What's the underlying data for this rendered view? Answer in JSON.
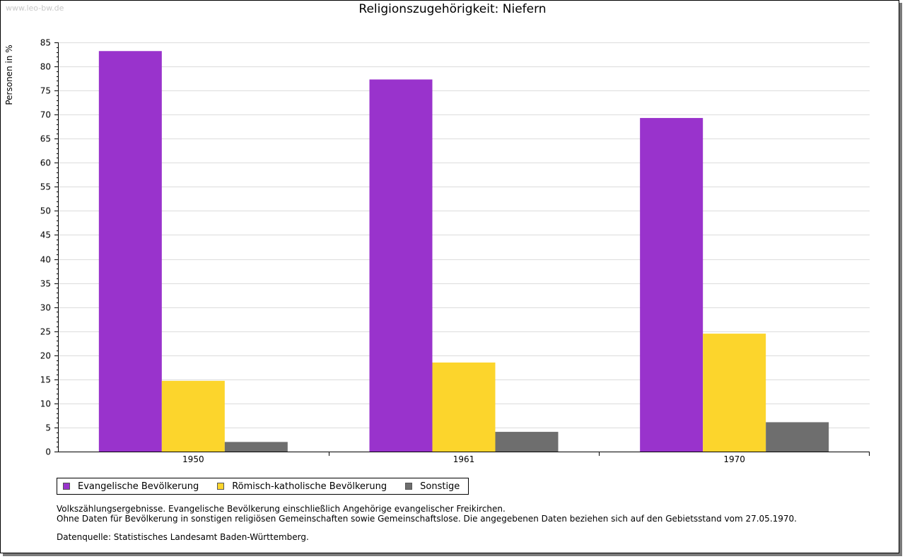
{
  "watermark": "www.leo-bw.de",
  "chart_data": {
    "type": "bar",
    "title": "Religionszugehörigkeit: Niefern",
    "xlabel": "",
    "ylabel": "Personen in %",
    "ylim": [
      0,
      85
    ],
    "ytick_step": 5,
    "grid": true,
    "categories": [
      "1950",
      "1961",
      "1970"
    ],
    "series": [
      {
        "name": "Evangelische Bevölkerung",
        "color": "#9933cc",
        "values": [
          83.2,
          77.3,
          69.3
        ]
      },
      {
        "name": "Römisch-katholische Bevölkerung",
        "color": "#fcd52c",
        "values": [
          14.7,
          18.5,
          24.5
        ]
      },
      {
        "name": "Sonstige",
        "color": "#6e6e6e",
        "values": [
          2.0,
          4.1,
          6.1
        ]
      }
    ],
    "legend_position": "bottom-left"
  },
  "notes": {
    "line1": "Volkszählungsergebnisse. Evangelische Bevölkerung einschließlich Angehörige evangelischer Freikirchen.",
    "line2": "Ohne Daten für Bevölkerung in sonstigen religiösen Gemeinschaften sowie Gemeinschaftslose. Die angegebenen Daten beziehen sich auf den Gebietsstand vom 27.05.1970.",
    "source": "Datenquelle: Statistisches Landesamt Baden-Württemberg."
  }
}
